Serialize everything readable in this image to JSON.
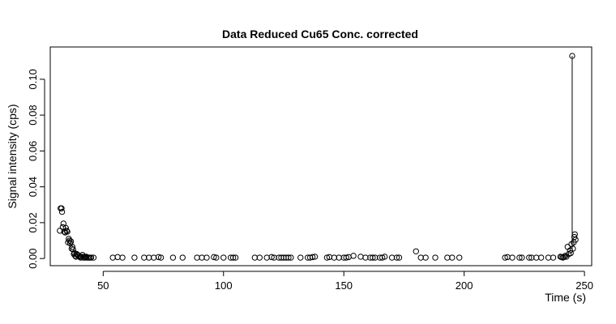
{
  "chart_data": {
    "type": "scatter",
    "title": "Data Reduced Cu65 Conc. corrected",
    "xlabel": "Time (s)",
    "ylabel": "Signal intensity (cps)",
    "xlim": [
      28,
      253
    ],
    "ylim": [
      -0.004,
      0.118
    ],
    "xticks": [
      50,
      100,
      150,
      200,
      250
    ],
    "xtick_labels": [
      "50",
      "100",
      "150",
      "200",
      "250"
    ],
    "yticks": [
      0.0,
      0.02,
      0.04,
      0.06,
      0.08,
      0.1
    ],
    "ytick_labels": [
      "0.00",
      "0.02",
      "0.04",
      "0.06",
      "0.08",
      "0.10"
    ],
    "grid": false,
    "legend": "none",
    "series": [
      {
        "points": [
          [
            32.0,
            0.0155
          ],
          [
            32.3,
            0.028
          ],
          [
            32.7,
            0.028
          ],
          [
            32.9,
            0.026
          ],
          [
            33.2,
            0.0175
          ],
          [
            33.5,
            0.0195
          ],
          [
            33.8,
            0.015
          ],
          [
            34.2,
            0.0145
          ],
          [
            34.5,
            0.017
          ],
          [
            34.8,
            0.0155
          ],
          [
            35.1,
            0.015
          ],
          [
            35.4,
            0.009
          ],
          [
            35.7,
            0.011
          ],
          [
            36.0,
            0.01
          ],
          [
            36.3,
            0.0085
          ],
          [
            36.6,
            0.0095
          ],
          [
            36.9,
            0.0055
          ],
          [
            37.2,
            0.0065
          ],
          [
            37.5,
            0.005
          ],
          [
            37.8,
            0.0025
          ],
          [
            38.1,
            0.003
          ],
          [
            38.4,
            0.0015
          ],
          [
            38.7,
            0.001
          ],
          [
            39.0,
            0.0025
          ],
          [
            39.4,
            0.002
          ],
          [
            39.8,
            0.0015
          ],
          [
            40.2,
            0.001
          ],
          [
            40.6,
            0.0005
          ],
          [
            41.0,
            0.001
          ],
          [
            41.4,
            0.002
          ],
          [
            41.8,
            0.0005
          ],
          [
            42.2,
            0.001
          ],
          [
            42.6,
            0.0005
          ],
          [
            43.0,
            0.001
          ],
          [
            43.5,
            0.0005
          ],
          [
            44.0,
            0.0005
          ],
          [
            44.5,
            0.0005
          ],
          [
            45.0,
            0.0005
          ],
          [
            46.0,
            0.0005
          ],
          [
            54.0,
            0.0005
          ],
          [
            56.0,
            0.0008
          ],
          [
            58.0,
            0.0005
          ],
          [
            63.0,
            0.0005
          ],
          [
            67.0,
            0.0005
          ],
          [
            69.0,
            0.0005
          ],
          [
            71.0,
            0.0005
          ],
          [
            73.0,
            0.0008
          ],
          [
            74.0,
            0.0005
          ],
          [
            79.0,
            0.0005
          ],
          [
            83.0,
            0.0005
          ],
          [
            89.0,
            0.0005
          ],
          [
            91.0,
            0.0005
          ],
          [
            93.0,
            0.0005
          ],
          [
            96.0,
            0.0008
          ],
          [
            97.0,
            0.0005
          ],
          [
            100.0,
            0.0005
          ],
          [
            103.0,
            0.0005
          ],
          [
            104.0,
            0.0005
          ],
          [
            105.0,
            0.0005
          ],
          [
            113.0,
            0.0005
          ],
          [
            115.0,
            0.0005
          ],
          [
            118.0,
            0.0005
          ],
          [
            120.0,
            0.0008
          ],
          [
            121.0,
            0.0005
          ],
          [
            123.0,
            0.0005
          ],
          [
            124.0,
            0.0005
          ],
          [
            125.0,
            0.0005
          ],
          [
            126.0,
            0.0005
          ],
          [
            127.0,
            0.0005
          ],
          [
            128.0,
            0.0005
          ],
          [
            132.0,
            0.0005
          ],
          [
            135.0,
            0.0005
          ],
          [
            136.0,
            0.0005
          ],
          [
            137.0,
            0.0008
          ],
          [
            138.0,
            0.001
          ],
          [
            143.0,
            0.0005
          ],
          [
            144.0,
            0.0008
          ],
          [
            146.0,
            0.0005
          ],
          [
            148.0,
            0.0005
          ],
          [
            150.0,
            0.0005
          ],
          [
            151.0,
            0.0005
          ],
          [
            152.0,
            0.0008
          ],
          [
            154.0,
            0.0015
          ],
          [
            157.0,
            0.001
          ],
          [
            159.0,
            0.0005
          ],
          [
            161.0,
            0.0005
          ],
          [
            162.0,
            0.0005
          ],
          [
            163.0,
            0.0005
          ],
          [
            165.0,
            0.0005
          ],
          [
            166.0,
            0.0005
          ],
          [
            167.0,
            0.001
          ],
          [
            170.0,
            0.0005
          ],
          [
            172.0,
            0.0005
          ],
          [
            173.0,
            0.0005
          ],
          [
            180.0,
            0.004
          ],
          [
            182.0,
            0.0005
          ],
          [
            184.0,
            0.0005
          ],
          [
            188.0,
            0.0005
          ],
          [
            193.0,
            0.0005
          ],
          [
            195.0,
            0.0005
          ],
          [
            198.0,
            0.0005
          ],
          [
            217.0,
            0.0005
          ],
          [
            218.0,
            0.0008
          ],
          [
            220.0,
            0.0005
          ],
          [
            223.0,
            0.0005
          ],
          [
            224.0,
            0.0005
          ],
          [
            227.0,
            0.0005
          ],
          [
            228.0,
            0.0005
          ],
          [
            230.0,
            0.0005
          ],
          [
            232.0,
            0.0005
          ],
          [
            235.0,
            0.0005
          ],
          [
            237.0,
            0.0005
          ],
          [
            240.0,
            0.001
          ],
          [
            240.5,
            0.0008
          ],
          [
            241.0,
            0.0005
          ],
          [
            241.5,
            0.0008
          ],
          [
            242.0,
            0.0015
          ],
          [
            242.5,
            0.001
          ],
          [
            243.0,
            0.0065
          ],
          [
            243.5,
            0.0025
          ],
          [
            244.0,
            0.0045
          ],
          [
            244.3,
            0.003
          ],
          [
            244.6,
            0.008
          ],
          [
            244.9,
            0.113
          ],
          [
            245.2,
            0.0055
          ],
          [
            245.5,
            0.009
          ],
          [
            245.8,
            0.012
          ],
          [
            246.0,
            0.0135
          ],
          [
            246.3,
            0.0105
          ]
        ]
      }
    ],
    "segment": [
      [
        244.9,
        0.113
      ],
      [
        244.9,
        0.0055
      ]
    ]
  }
}
